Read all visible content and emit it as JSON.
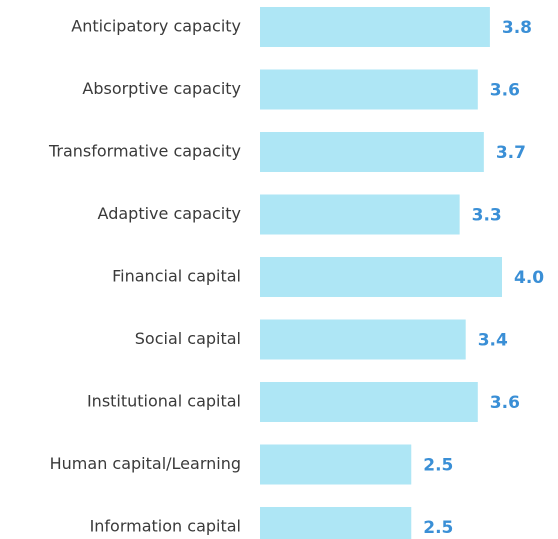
{
  "chart_data": {
    "type": "barh",
    "categories": [
      "Anticipatory capacity",
      "Absorptive capacity",
      "Transformative capacity",
      "Adaptive capacity",
      "Financial capital",
      "Social capital",
      "Institutional capital",
      "Human capital/Learning",
      "Information capital"
    ],
    "values": [
      3.8,
      3.6,
      3.7,
      3.3,
      4.0,
      3.4,
      3.6,
      2.5,
      2.5
    ],
    "value_labels": [
      "3.8",
      "3.6",
      "3.7",
      "3.3",
      "4.0",
      "3.4",
      "3.6",
      "2.5",
      "2.5"
    ],
    "color": "#aee6f5",
    "label_color": "#3a8fd6"
  }
}
